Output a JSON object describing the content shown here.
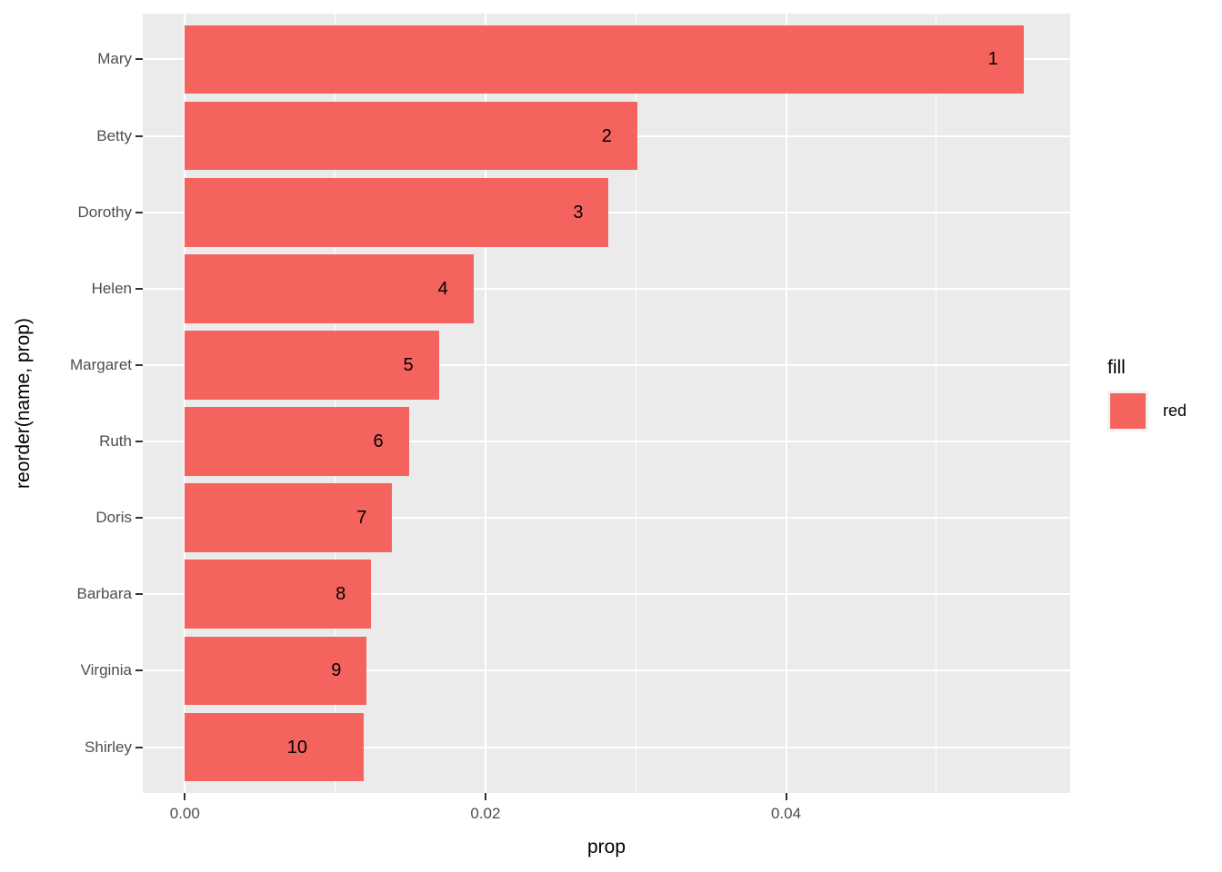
{
  "figure": {
    "background": "#FFFFFF",
    "panel_background": "#EBEBEB",
    "grid_color": "#FFFFFF",
    "bar_color": "#F4635E",
    "axis_text_color": "#4D4D4D",
    "axis_title_color": "#000000",
    "tick_color": "#333333",
    "legend_key_background": "#F2F2F2"
  },
  "chart_data": {
    "type": "bar",
    "orientation": "horizontal",
    "title": "",
    "xlabel": "prop",
    "ylabel": "reorder(name, prop)",
    "categories": [
      "Mary",
      "Betty",
      "Dorothy",
      "Helen",
      "Margaret",
      "Ruth",
      "Doris",
      "Barbara",
      "Virginia",
      "Shirley"
    ],
    "values": [
      0.0558,
      0.0301,
      0.0282,
      0.0192,
      0.0169,
      0.0149,
      0.0138,
      0.0124,
      0.0121,
      0.0119
    ],
    "bar_labels": [
      "1",
      "2",
      "3",
      "4",
      "5",
      "6",
      "7",
      "8",
      "9",
      "10"
    ],
    "x_ticks": [
      0,
      0.02,
      0.04
    ],
    "x_tick_labels": [
      "0.00",
      "0.02",
      "0.04"
    ],
    "x_minor_gridlines": [
      0.01,
      0.03,
      0.05
    ],
    "xlim": [
      -0.0028,
      0.0589
    ],
    "grid": true,
    "band_expansion": 0.6,
    "bar_width_fraction": 0.9,
    "legend": {
      "title": "fill",
      "position": "right",
      "entries": [
        {
          "label": "red",
          "color": "#F4635E"
        }
      ]
    }
  }
}
